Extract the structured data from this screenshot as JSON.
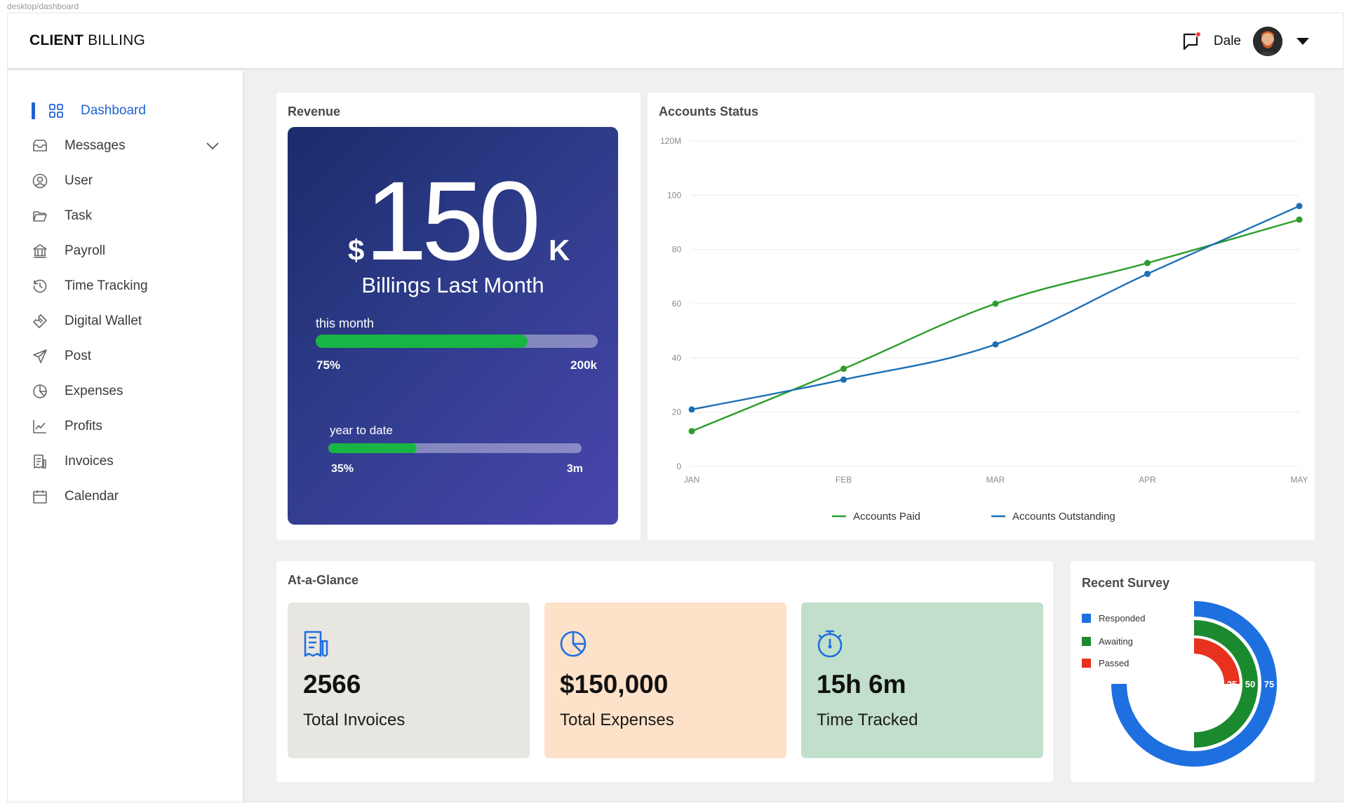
{
  "crumb": "desktop/dashboard",
  "header": {
    "brand_bold": "CLIENT",
    "brand_light": "BILLING",
    "user_name": "Dale"
  },
  "sidebar": {
    "items": [
      {
        "label": "Dashboard",
        "icon": "grid-icon",
        "active": true
      },
      {
        "label": "Messages",
        "icon": "inbox-icon",
        "expandable": true
      },
      {
        "label": "User",
        "icon": "user-circle-icon"
      },
      {
        "label": "Task",
        "icon": "folder-icon"
      },
      {
        "label": "Payroll",
        "icon": "bank-icon"
      },
      {
        "label": "Time Tracking",
        "icon": "history-icon"
      },
      {
        "label": "Digital Wallet",
        "icon": "ticket-icon"
      },
      {
        "label": "Post",
        "icon": "send-icon"
      },
      {
        "label": "Expenses",
        "icon": "pie-chart-icon"
      },
      {
        "label": "Profits",
        "icon": "line-chart-icon"
      },
      {
        "label": "Invoices",
        "icon": "invoice-icon"
      },
      {
        "label": "Calendar",
        "icon": "calendar-icon"
      }
    ]
  },
  "revenue": {
    "title": "Revenue",
    "currency": "$",
    "amount": "150",
    "suffix": "K",
    "subtitle": "Billings Last Month",
    "month": {
      "label": "this month",
      "percent_text": "75%",
      "target": "200k",
      "fraction": 0.75
    },
    "ytd": {
      "label": "year to date",
      "percent_text": "35%",
      "target": "3m",
      "fraction": 0.35
    }
  },
  "accounts": {
    "title": "Accounts Status",
    "legend": [
      "Accounts Paid",
      "Accounts Outstanding"
    ]
  },
  "chart_data": {
    "type": "line",
    "title": "Accounts Status",
    "categories": [
      "JAN",
      "FEB",
      "MAR",
      "APR",
      "MAY"
    ],
    "y_tick_labels": [
      "0",
      "20",
      "40",
      "60",
      "80",
      "100",
      "120M"
    ],
    "ylim": [
      0,
      120
    ],
    "grid": true,
    "legend_position": "bottom",
    "series": [
      {
        "name": "Accounts Paid",
        "color": "#2a9d2a",
        "values": [
          13,
          36,
          60,
          75,
          91
        ]
      },
      {
        "name": "Accounts Outstanding",
        "color": "#1d6fb4",
        "values": [
          21,
          32,
          45,
          71,
          96
        ]
      }
    ]
  },
  "glance": {
    "title": "At-a-Glance",
    "cards": [
      {
        "value": "2566",
        "label": "Total Invoices",
        "icon": "invoice-icon",
        "bg": "#e8e6e1"
      },
      {
        "value": "$150,000",
        "label": "Total Expenses",
        "icon": "pie-chart-icon",
        "bg": "#fde1c8"
      },
      {
        "value": "15h 6m",
        "label": "Time Tracked",
        "icon": "stopwatch-icon",
        "bg": "#c2dfcb"
      }
    ]
  },
  "survey": {
    "title": "Recent Survey",
    "legend": [
      {
        "label": "Responded",
        "color": "#1e6fe0"
      },
      {
        "label": "Awaiting",
        "color": "#1b8a2e"
      },
      {
        "label": "Passed",
        "color": "#e8321e"
      }
    ],
    "rings": [
      {
        "label": "75",
        "value": 75,
        "color": "#1e6fe0"
      },
      {
        "label": "50",
        "value": 50,
        "color": "#1b8a2e"
      },
      {
        "label": "25",
        "value": 25,
        "color": "#e8321e"
      }
    ]
  },
  "colors": {
    "accent": "#1e62d4",
    "progress": "#19b544"
  }
}
